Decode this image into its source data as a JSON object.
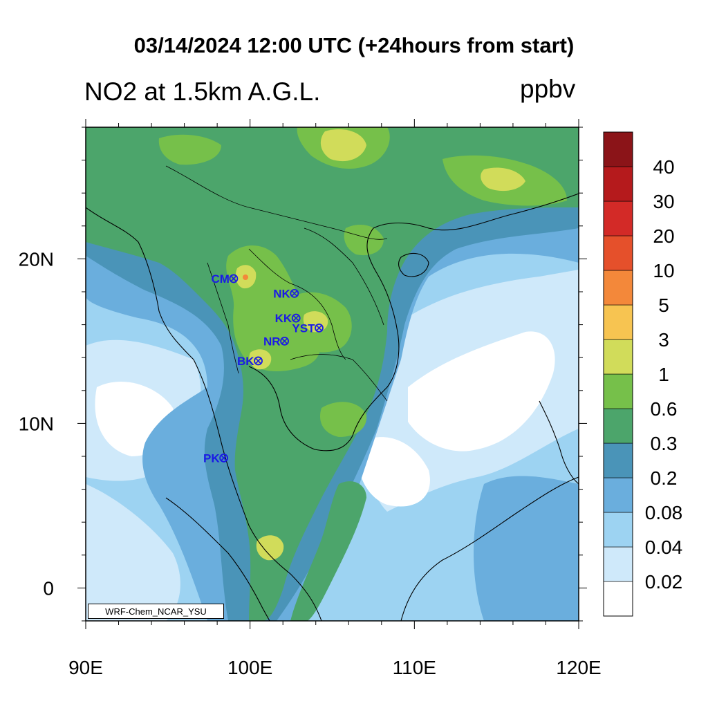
{
  "title": "03/14/2024 12:00 UTC (+24hours from start)",
  "variable_label": "NO2 at 1.5km A.G.L.",
  "unit_label": "ppbv",
  "credit": "WRF-Chem_NCAR_YSU",
  "map": {
    "lon_range": [
      90,
      120
    ],
    "lat_range": [
      -2,
      28
    ],
    "x_ticks": [
      {
        "value": 90,
        "label": "90E"
      },
      {
        "value": 100,
        "label": "100E"
      },
      {
        "value": 110,
        "label": "110E"
      },
      {
        "value": 120,
        "label": "120E"
      }
    ],
    "y_ticks": [
      {
        "value": 0,
        "label": "0"
      },
      {
        "value": 10,
        "label": "10N"
      },
      {
        "value": 20,
        "label": "20N"
      }
    ]
  },
  "stations": [
    {
      "code": "CM",
      "lon": 99.0,
      "lat": 18.8
    },
    {
      "code": "NK",
      "lon": 102.7,
      "lat": 17.9
    },
    {
      "code": "KK",
      "lon": 102.8,
      "lat": 16.4
    },
    {
      "code": "YST",
      "lon": 104.2,
      "lat": 15.8
    },
    {
      "code": "NR",
      "lon": 102.1,
      "lat": 15.0
    },
    {
      "code": "BK",
      "lon": 100.5,
      "lat": 13.8
    },
    {
      "code": "PK",
      "lon": 98.4,
      "lat": 7.9
    }
  ],
  "colorbar": {
    "levels": [
      "0.02",
      "0.04",
      "0.08",
      "0.2",
      "0.3",
      "0.6",
      "1",
      "3",
      "5",
      "10",
      "20",
      "30",
      "40"
    ],
    "colors": [
      "#ffffff",
      "#cfe9fa",
      "#9dd3f2",
      "#6aaedd",
      "#4a94b8",
      "#4ca56b",
      "#76c04a",
      "#d1dc5a",
      "#f7c451",
      "#f3883a",
      "#e5502b",
      "#d32a27",
      "#b51a1c",
      "#8b1418"
    ]
  }
}
